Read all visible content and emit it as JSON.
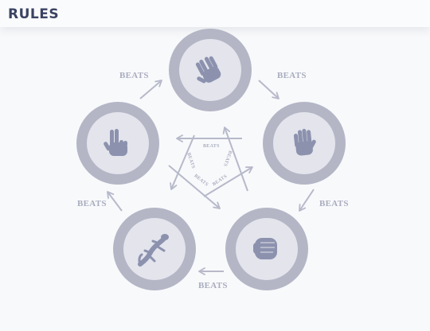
{
  "header": {
    "title": "RULES"
  },
  "tokens": {
    "spock": {
      "icon": "spock-hand-icon"
    },
    "scissors": {
      "icon": "scissors-hand-icon"
    },
    "paper": {
      "icon": "paper-hand-icon"
    },
    "rock": {
      "icon": "rock-fist-icon"
    },
    "lizard": {
      "icon": "lizard-icon"
    }
  },
  "labels": {
    "beats": "BEATS",
    "outer_top_left": "BEATS",
    "outer_top_right": "BEATS",
    "outer_right": "BEATS",
    "outer_bottom": "BEATS",
    "outer_left": "BEATS",
    "inner_top": "BEATS",
    "inner_left": "BEATS",
    "inner_right": "BEATS",
    "inner_bottom_left": "BEATS",
    "inner_bottom_right": "BEATS"
  },
  "colors": {
    "background": "#f8f9fb",
    "title": "#3b4363",
    "token_ring": "#b4b6c6",
    "token_face": "#e3e4ec",
    "icon": "#8c92ae",
    "arrow": "#b7b9ca",
    "label": "#a9acbe"
  }
}
